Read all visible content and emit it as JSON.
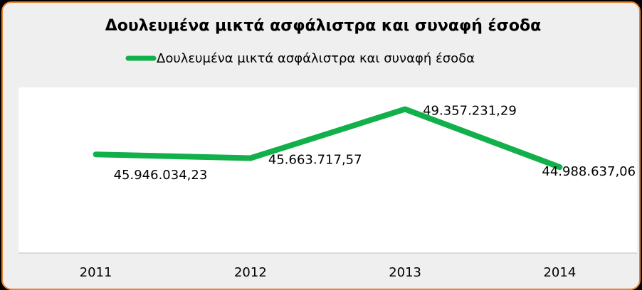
{
  "chart_data": {
    "type": "line",
    "title": "Δουλευμένα μικτά ασφάλιστρα και συναφή έσοδα",
    "xlabel": "",
    "ylabel": "",
    "categories": [
      "2011",
      "2012",
      "2013",
      "2014"
    ],
    "series": [
      {
        "name": "Δουλευμένα μικτά ασφάλιστρα και συναφή έσοδα",
        "values": [
          45946034.23,
          45663717.57,
          49357231.29,
          44988637.06
        ],
        "labels": [
          "45.946.034,23",
          "45.663.717,57",
          "49.357.231,29",
          "44.988.637,06"
        ],
        "color": "#12b04a"
      }
    ],
    "ylim": [
      38500000,
      51000000
    ],
    "grid": false,
    "legend_position": "top",
    "plot_background": "#ffffff",
    "frame_background": "#efefef",
    "frame_border": "#e0873a"
  }
}
